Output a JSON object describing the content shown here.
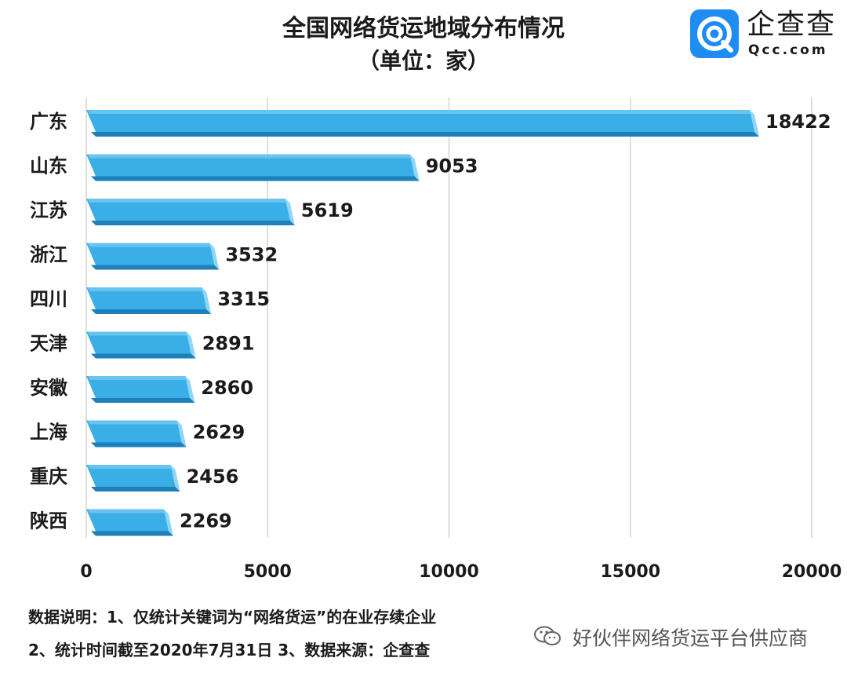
{
  "header": {
    "title": "全国网络货运地域分布情况",
    "subtitle": "（单位：家）"
  },
  "logo": {
    "icon": "qcc-logo-icon",
    "name": "企查查",
    "domain": "Qcc.com",
    "brand_color": "#1e8cf0"
  },
  "chart_data": {
    "type": "bar",
    "orientation": "horizontal",
    "categories": [
      "广东",
      "山东",
      "江苏",
      "浙江",
      "四川",
      "天津",
      "安徽",
      "上海",
      "重庆",
      "陕西"
    ],
    "values": [
      18422,
      9053,
      5619,
      3532,
      3315,
      2891,
      2860,
      2629,
      2456,
      2269
    ],
    "data_labels": [
      "18422",
      "9053",
      "5619",
      "3532",
      "3315",
      "2891",
      "2860",
      "2629",
      "2456",
      "2269"
    ],
    "xlim": [
      0,
      20000
    ],
    "xticks": [
      0,
      5000,
      10000,
      15000,
      20000
    ],
    "xtick_labels": [
      "0",
      "5000",
      "10000",
      "15000",
      "20000"
    ],
    "grid": "vertical",
    "legend": "none",
    "bar_color": "#3aaee6",
    "bar_top_color": "#8fd6f6",
    "bar_shadow_color": "#1f7fb8"
  },
  "notes": {
    "line1": "数据说明：1、仅统计关键词为“网络货运”的在业存续企业",
    "line2": "2、统计时间截至2020年7月31日    3、数据来源：企查查"
  },
  "watermark": {
    "icon": "wechat-icon",
    "text": "好伙伴网络货运平台供应商"
  }
}
